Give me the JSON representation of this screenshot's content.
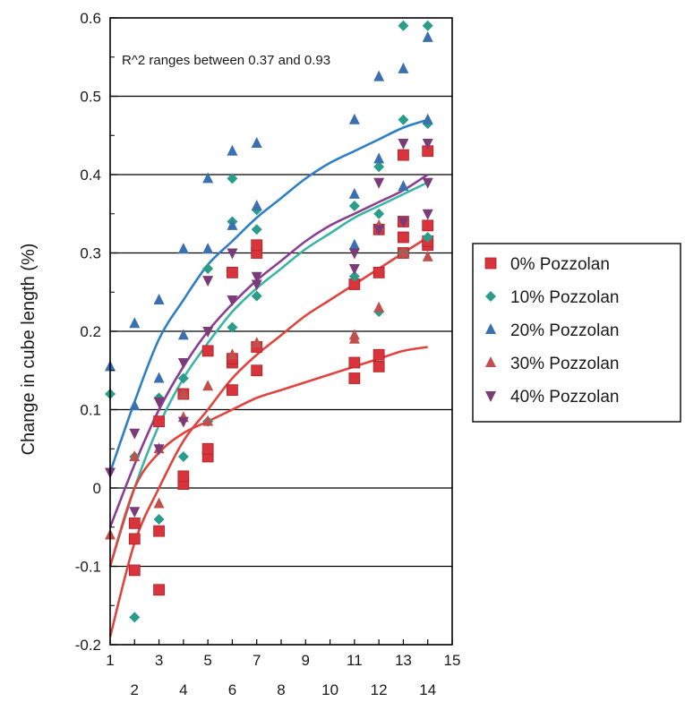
{
  "chart_data": {
    "type": "scatter",
    "title": "",
    "xlabel": "",
    "ylabel": "Change in cube length (%)",
    "annotation": "R^2 ranges between 0.37 and 0.93",
    "xlim": [
      1,
      15
    ],
    "ylim": [
      -0.2,
      0.6
    ],
    "grid": "horizontal",
    "legend_position": "right",
    "x_ticks_upper": [
      "1",
      "3",
      "5",
      "7",
      "9",
      "11",
      "13",
      "15"
    ],
    "x_ticks_lower": [
      "2",
      "4",
      "6",
      "8",
      "10",
      "12",
      "14"
    ],
    "y_ticks": [
      "-0.2",
      "-0.1",
      "0",
      "0.1",
      "0.2",
      "0.3",
      "0.4",
      "0.5",
      "0.6"
    ],
    "series": [
      {
        "name": "0% Pozzolan",
        "marker": "square",
        "color": "#d9343b",
        "x": [
          2,
          2,
          2,
          3,
          3,
          3,
          4,
          4,
          4,
          5,
          5,
          5,
          6,
          6,
          6,
          6,
          7,
          7,
          7,
          7,
          11,
          11,
          11,
          12,
          12,
          12,
          12,
          13,
          13,
          13,
          13,
          14,
          14,
          14,
          14
        ],
        "y": [
          -0.105,
          -0.065,
          -0.045,
          -0.13,
          -0.055,
          0.085,
          0.005,
          0.015,
          0.12,
          0.04,
          0.05,
          0.175,
          0.125,
          0.16,
          0.165,
          0.275,
          0.15,
          0.18,
          0.3,
          0.31,
          0.14,
          0.16,
          0.26,
          0.155,
          0.17,
          0.275,
          0.33,
          0.3,
          0.32,
          0.34,
          0.425,
          0.31,
          0.315,
          0.335,
          0.43
        ]
      },
      {
        "name": "10% Pozzolan",
        "marker": "diamond",
        "color": "#2a9d8a",
        "x": [
          1,
          2,
          2,
          3,
          3,
          4,
          4,
          5,
          5,
          6,
          6,
          6,
          7,
          7,
          7,
          11,
          11,
          12,
          12,
          12,
          13,
          13,
          13,
          14,
          14,
          14
        ],
        "y": [
          0.12,
          -0.165,
          0.04,
          -0.04,
          0.115,
          0.04,
          0.14,
          0.085,
          0.28,
          0.205,
          0.34,
          0.395,
          0.245,
          0.33,
          0.355,
          0.27,
          0.36,
          0.225,
          0.35,
          0.41,
          0.3,
          0.47,
          0.59,
          0.32,
          0.465,
          0.59
        ]
      },
      {
        "name": "20% Pozzolan",
        "marker": "triangle-up",
        "color": "#3a6fb0",
        "x": [
          1,
          2,
          2,
          3,
          3,
          4,
          4,
          5,
          5,
          6,
          6,
          7,
          7,
          11,
          11,
          11,
          12,
          12,
          13,
          13,
          14,
          14
        ],
        "y": [
          0.155,
          0.105,
          0.21,
          0.14,
          0.24,
          0.195,
          0.305,
          0.305,
          0.395,
          0.335,
          0.43,
          0.36,
          0.44,
          0.31,
          0.375,
          0.47,
          0.42,
          0.525,
          0.385,
          0.535,
          0.47,
          0.575
        ]
      },
      {
        "name": "30% Pozzolan",
        "marker": "triangle-up",
        "color": "#c0504d",
        "x": [
          1,
          2,
          3,
          3,
          4,
          4,
          5,
          5,
          6,
          7,
          11,
          11,
          12,
          12,
          13,
          14
        ],
        "y": [
          -0.06,
          0.04,
          -0.02,
          0.05,
          0.09,
          0.12,
          0.085,
          0.13,
          0.17,
          0.185,
          0.19,
          0.195,
          0.23,
          0.335,
          0.3,
          0.295
        ]
      },
      {
        "name": "40% Pozzolan",
        "marker": "triangle-down",
        "color": "#7a3c78",
        "x": [
          1,
          2,
          2,
          3,
          3,
          4,
          4,
          5,
          5,
          6,
          6,
          7,
          7,
          11,
          11,
          12,
          12,
          13,
          13,
          14,
          14,
          14
        ],
        "y": [
          0.02,
          -0.03,
          0.07,
          0.05,
          0.11,
          0.085,
          0.16,
          0.2,
          0.265,
          0.24,
          0.3,
          0.26,
          0.27,
          0.28,
          0.3,
          0.33,
          0.39,
          0.34,
          0.44,
          0.35,
          0.39,
          0.44
        ]
      }
    ],
    "trend_lines": [
      {
        "color": "#2f7fc4",
        "x": [
          1,
          2,
          3,
          4,
          5,
          6,
          7,
          8,
          9,
          10,
          11,
          12,
          13,
          14
        ],
        "y": [
          0.02,
          0.11,
          0.19,
          0.24,
          0.285,
          0.315,
          0.345,
          0.37,
          0.395,
          0.415,
          0.43,
          0.445,
          0.46,
          0.47
        ]
      },
      {
        "color": "#8a3f93",
        "x": [
          1,
          2,
          3,
          4,
          5,
          6,
          7,
          8,
          9,
          10,
          11,
          12,
          13,
          14
        ],
        "y": [
          -0.05,
          0.03,
          0.1,
          0.155,
          0.2,
          0.235,
          0.265,
          0.29,
          0.315,
          0.335,
          0.35,
          0.365,
          0.38,
          0.4
        ]
      },
      {
        "color": "#3bb5a3",
        "x": [
          1,
          2,
          3,
          4,
          5,
          6,
          7,
          8,
          9,
          10,
          11,
          12,
          13,
          14
        ],
        "y": [
          -0.1,
          0.0,
          0.08,
          0.14,
          0.185,
          0.225,
          0.255,
          0.28,
          0.305,
          0.325,
          0.345,
          0.36,
          0.375,
          0.39
        ]
      },
      {
        "color": "#e0443e",
        "x": [
          1,
          2,
          3,
          4,
          5,
          6,
          7,
          8,
          9,
          10,
          11,
          12,
          13,
          14
        ],
        "y": [
          -0.19,
          -0.07,
          0.0,
          0.06,
          0.1,
          0.14,
          0.17,
          0.195,
          0.22,
          0.24,
          0.26,
          0.28,
          0.3,
          0.32
        ]
      },
      {
        "color": "#e0443e",
        "x": [
          1,
          2,
          3,
          4,
          5,
          6,
          7,
          8,
          9,
          10,
          11,
          12,
          13,
          14
        ],
        "y": [
          -0.1,
          0.0,
          0.045,
          0.07,
          0.085,
          0.1,
          0.115,
          0.125,
          0.135,
          0.145,
          0.155,
          0.165,
          0.175,
          0.18
        ]
      }
    ]
  }
}
